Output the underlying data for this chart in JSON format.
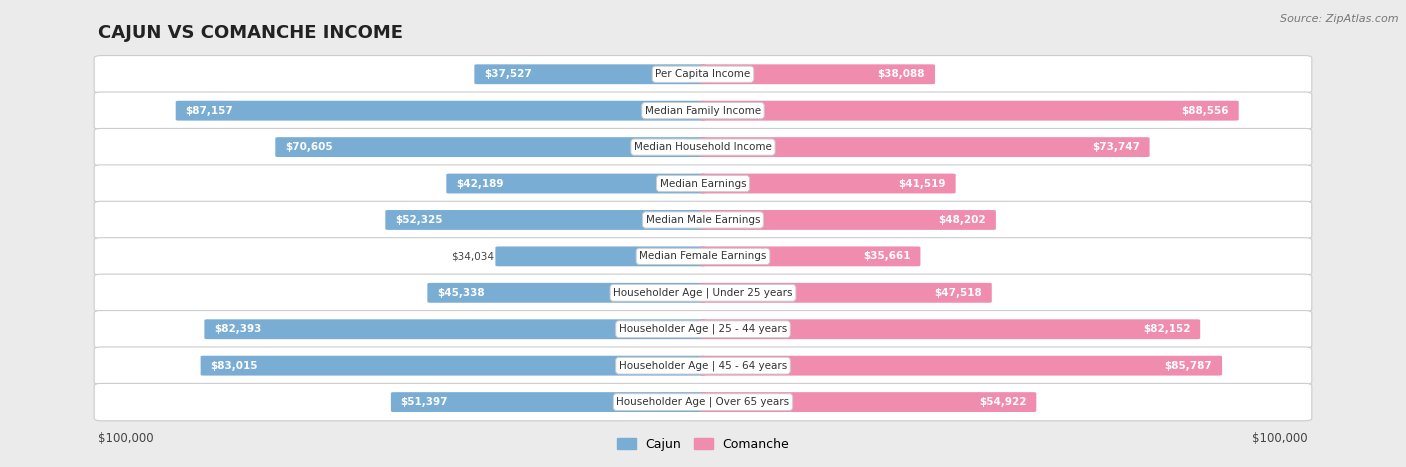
{
  "title": "CAJUN VS COMANCHE INCOME",
  "source": "Source: ZipAtlas.com",
  "categories": [
    "Per Capita Income",
    "Median Family Income",
    "Median Household Income",
    "Median Earnings",
    "Median Male Earnings",
    "Median Female Earnings",
    "Householder Age | Under 25 years",
    "Householder Age | 25 - 44 years",
    "Householder Age | 45 - 64 years",
    "Householder Age | Over 65 years"
  ],
  "cajun_values": [
    37527,
    87157,
    70605,
    42189,
    52325,
    34034,
    45338,
    82393,
    83015,
    51397
  ],
  "comanche_values": [
    38088,
    88556,
    73747,
    41519,
    48202,
    35661,
    47518,
    82152,
    85787,
    54922
  ],
  "cajun_labels": [
    "$37,527",
    "$87,157",
    "$70,605",
    "$42,189",
    "$52,325",
    "$34,034",
    "$45,338",
    "$82,393",
    "$83,015",
    "$51,397"
  ],
  "comanche_labels": [
    "$38,088",
    "$88,556",
    "$73,747",
    "$41,519",
    "$48,202",
    "$35,661",
    "$47,518",
    "$82,152",
    "$85,787",
    "$54,922"
  ],
  "cajun_color": "#7aadd4",
  "comanche_color": "#f08cad",
  "max_value": 100000,
  "bg_color": "#ebebeb",
  "row_bg_color": "#ffffff"
}
